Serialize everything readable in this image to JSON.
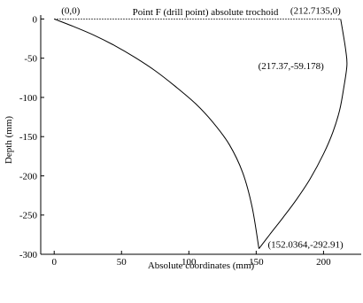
{
  "chart_data": {
    "type": "line",
    "title": "Point F (drill point) absolute trochoid",
    "xlabel": "Absolute coordinates (mm)",
    "ylabel": "Depth (mm)",
    "xlim": [
      -10,
      228
    ],
    "ylim": [
      -300,
      5
    ],
    "xticks": [
      0,
      50,
      100,
      150,
      200
    ],
    "yticks": [
      0,
      -50,
      -100,
      -150,
      -200,
      -250,
      -300
    ],
    "grid": false,
    "series": [
      {
        "x": [
          0,
          15,
          30,
          45,
          60,
          75,
          90,
          105,
          118,
          130,
          140,
          147,
          152.0364,
          160,
          170,
          180,
          190,
          200,
          207,
          212,
          215,
          217.37,
          216.5,
          214.5,
          212.7135
        ],
        "y": [
          0,
          -10,
          -21,
          -34,
          -49,
          -66,
          -86,
          -108,
          -132,
          -160,
          -196,
          -240,
          -292.91,
          -275,
          -253,
          -230,
          -204,
          -172,
          -144,
          -116,
          -88,
          -59.178,
          -40,
          -18,
          0
        ]
      }
    ],
    "reference_line": {
      "x": [
        0,
        212.7135
      ],
      "y": [
        0,
        0
      ]
    },
    "annotations": [
      {
        "text": "(0,0)",
        "x": 0,
        "y": 0
      },
      {
        "text": "(212.7135,0)",
        "x": 212.7135,
        "y": 0
      },
      {
        "text": "(217.37,-59.178)",
        "x": 217.37,
        "y": -59.178
      },
      {
        "text": "(152.0364,-292.91)",
        "x": 152.0364,
        "y": -292.91
      }
    ]
  }
}
